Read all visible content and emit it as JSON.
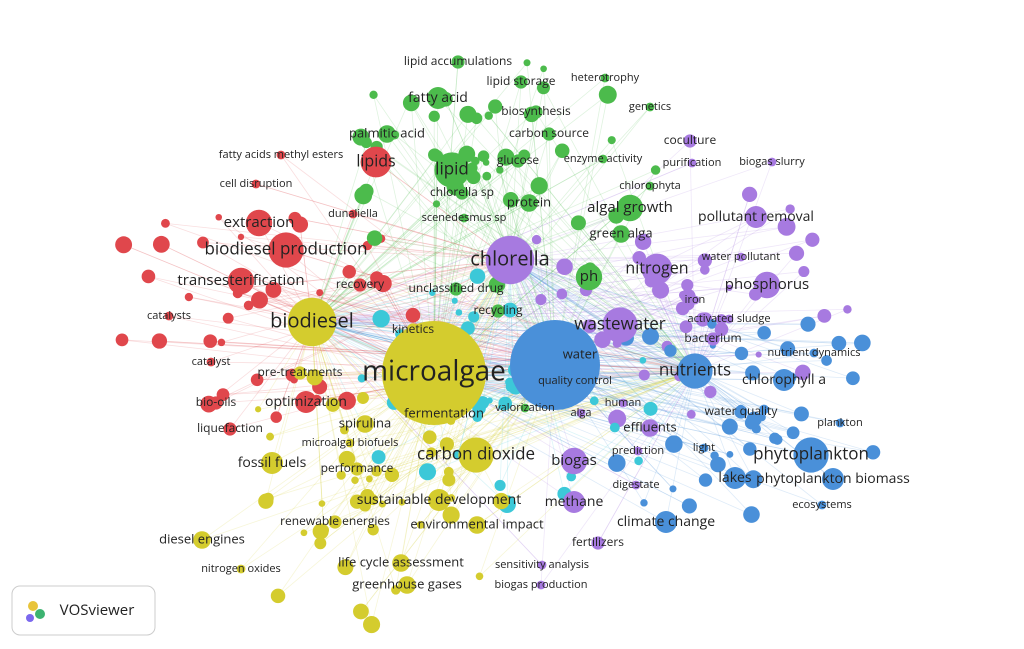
{
  "nodes": [
    "lipid accumulations",
    "lipid storage",
    "heterotrophy",
    "fatty acid",
    "biosynthesis",
    "genetics",
    "palmitic acid",
    "carbon source",
    "lipid",
    "glucose",
    "enzyme activity",
    "chlorella sp",
    "chlorophyta",
    "protein",
    "algal growth",
    "scenedesmus sp",
    "green alga",
    "chlorella",
    "ph",
    "unclassified drug",
    "recycling",
    "valorization",
    "coculture",
    "purification",
    "biogas slurry",
    "pollutant removal",
    "nitrogen",
    "water pollutant",
    "phosphorus",
    "iron",
    "activated sludge",
    "wastewater",
    "bacterium",
    "water",
    "quality control",
    "human",
    "alga",
    "effluents",
    "prediction",
    "light",
    "biogas",
    "digestate",
    "methane",
    "fertilizers",
    "sensitivity analysis",
    "biogas production",
    "nutrient dynamics",
    "nutrients",
    "chlorophyll a",
    "water quality",
    "plankton",
    "phytoplankton",
    "lakes",
    "phytoplankton biomass",
    "climate change",
    "ecosystems",
    "fatty acids methyl esters",
    "lipids",
    "cell disruption",
    "dunaliella",
    "extraction",
    "biodiesel production",
    "transesterification",
    "recovery",
    "catalysts",
    "biodiesel",
    "kinetics",
    "catalyst",
    "pre-treatments",
    "bio-oils",
    "optimization",
    "liquefaction",
    "fermentation",
    "microalgae",
    "spirulina",
    "microalgal biofuels",
    "fossil fuels",
    "performance",
    "carbon dioxide",
    "sustainable development",
    "renewable energies",
    "environmental impact",
    "diesel engines",
    "nitrogen oxides",
    "life cycle assessment",
    "greenhouse gases"
  ],
  "logo": "VOSviewer"
}
